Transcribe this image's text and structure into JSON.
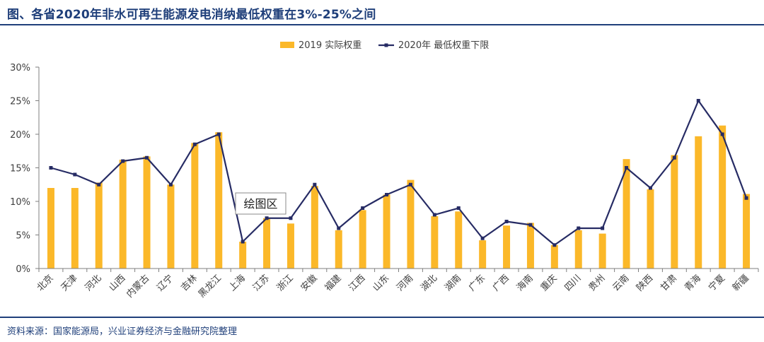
{
  "header": {
    "title": "图、各省2020年非水可再生能源发电消纳最低权重在3%-25%之间"
  },
  "footer": {
    "source": "资料来源：国家能源局，兴业证券经济与金融研究院整理"
  },
  "tooltip": {
    "label": "绘图区"
  },
  "colors": {
    "bar": "#fbb829",
    "line": "#262b64",
    "axis": "#7f7f7f",
    "text": "#404040",
    "brand": "#1f3f7a"
  },
  "chart_data": {
    "type": "bar+line",
    "categories": [
      "北京",
      "天津",
      "河北",
      "山西",
      "内蒙古",
      "辽宁",
      "吉林",
      "黑龙江",
      "上海",
      "江苏",
      "浙江",
      "安徽",
      "福建",
      "江西",
      "山东",
      "河南",
      "湖北",
      "湖南",
      "广东",
      "广西",
      "海南",
      "重庆",
      "四川",
      "贵州",
      "云南",
      "陕西",
      "甘肃",
      "青海",
      "宁夏",
      "新疆"
    ],
    "series": [
      {
        "name": "2019 实际权重",
        "type": "bar",
        "values": [
          12.0,
          12.0,
          12.8,
          16.2,
          16.7,
          12.5,
          18.7,
          20.3,
          4.0,
          7.5,
          6.7,
          12.3,
          5.7,
          8.7,
          11.0,
          13.2,
          7.8,
          8.5,
          4.2,
          6.4,
          6.8,
          3.5,
          5.7,
          5.2,
          16.3,
          11.8,
          16.9,
          19.7,
          21.3,
          11.1
        ]
      },
      {
        "name": "2020年 最低权重下限",
        "type": "line",
        "values": [
          15.0,
          14.0,
          12.5,
          16.0,
          16.5,
          12.5,
          18.5,
          20.0,
          4.0,
          7.5,
          7.5,
          12.5,
          6.0,
          9.0,
          11.0,
          12.5,
          8.0,
          9.0,
          4.5,
          7.0,
          6.5,
          3.5,
          6.0,
          6.0,
          15.0,
          12.0,
          16.5,
          25.0,
          20.0,
          10.5
        ]
      }
    ],
    "yticks": [
      "0%",
      "5%",
      "10%",
      "15%",
      "20%",
      "25%",
      "30%"
    ],
    "ylim": [
      0,
      30
    ],
    "legend": "top-center"
  }
}
